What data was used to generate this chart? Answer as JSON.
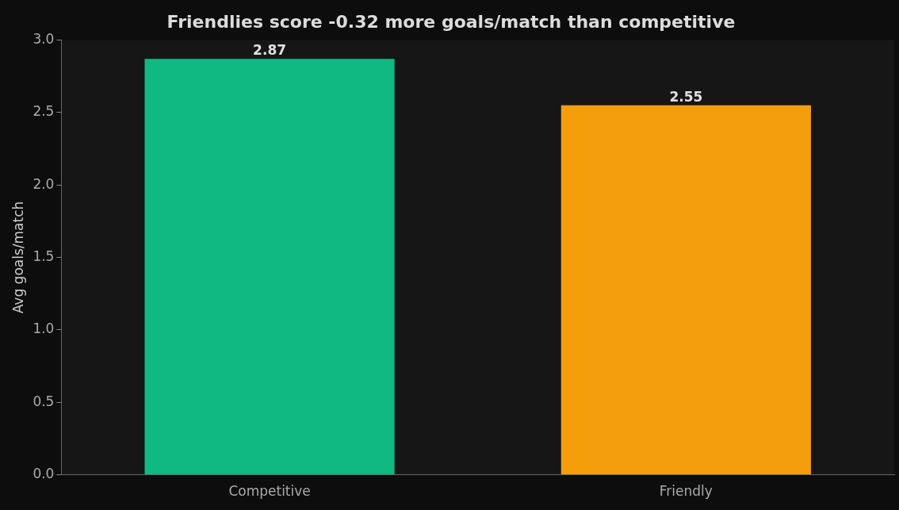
{
  "chart_data": {
    "type": "bar",
    "title": "Friendlies score -0.32 more goals/match than competitive",
    "ylabel": "Avg goals/match",
    "categories": [
      "Competitive",
      "Friendly"
    ],
    "values": [
      2.87,
      2.55
    ],
    "colors": [
      "#10b981",
      "#f59e0b"
    ],
    "ylim": [
      0,
      3
    ],
    "yticks": [
      {
        "value": 0,
        "label": "0.0"
      },
      {
        "value": 0.5,
        "label": "0.5"
      },
      {
        "value": 1,
        "label": "1.0"
      },
      {
        "value": 1.5,
        "label": "1.5"
      },
      {
        "value": 2,
        "label": "2.0"
      },
      {
        "value": 2.5,
        "label": "2.5"
      },
      {
        "value": 3,
        "label": "3.0"
      }
    ],
    "grid": false,
    "legend": false,
    "data_labels": true
  }
}
